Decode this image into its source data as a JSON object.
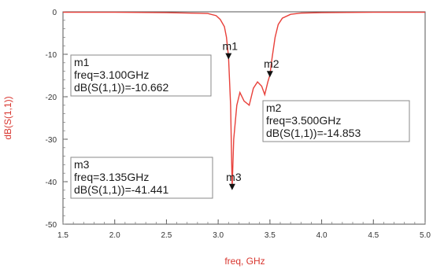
{
  "chart_data": {
    "type": "line",
    "xlabel": "freq, GHz",
    "ylabel": "dB(S(1,1))",
    "xlim": [
      1.5,
      5.0
    ],
    "ylim": [
      -50,
      0
    ],
    "x_ticks": [
      "1.5",
      "2.0",
      "2.5",
      "3.0",
      "3.5",
      "4.0",
      "4.5",
      "5.0"
    ],
    "y_ticks": [
      "0",
      "-10",
      "-20",
      "-30",
      "-40",
      "-50"
    ],
    "grid": false,
    "line_color": "#e8403a",
    "series": [
      {
        "x": [
          1.5,
          2.0,
          2.5,
          2.9,
          2.98,
          3.02,
          3.06,
          3.08,
          3.1,
          3.12,
          3.135,
          3.15,
          3.18,
          3.21,
          3.25,
          3.3,
          3.34,
          3.38,
          3.42,
          3.45,
          3.48,
          3.5,
          3.52,
          3.55,
          3.58,
          3.62,
          3.7,
          3.8,
          4.0,
          4.5,
          5.0
        ],
        "y": [
          -0.1,
          -0.1,
          -0.2,
          -0.4,
          -0.9,
          -1.8,
          -3.5,
          -6.0,
          -10.662,
          -22.0,
          -41.441,
          -30.0,
          -22.0,
          -19.0,
          -21.0,
          -22.0,
          -18.0,
          -16.5,
          -17.5,
          -19.5,
          -16.5,
          -14.853,
          -11.0,
          -6.0,
          -3.0,
          -1.5,
          -0.6,
          -0.3,
          -0.2,
          -0.1,
          -0.1
        ]
      }
    ],
    "markers": [
      {
        "name": "m1",
        "x": 3.1,
        "y": -10.662,
        "lines": [
          "m1",
          "freq=3.100GHz",
          "dB(S(1,1))=-10.662"
        ]
      },
      {
        "name": "m2",
        "x": 3.5,
        "y": -14.853,
        "lines": [
          "m2",
          "freq=3.500GHz",
          "dB(S(1,1))=-14.853"
        ]
      },
      {
        "name": "m3",
        "x": 3.135,
        "y": -41.441,
        "lines": [
          "m3",
          "freq=3.135GHz",
          "dB(S(1,1))=-41.441"
        ]
      }
    ]
  }
}
